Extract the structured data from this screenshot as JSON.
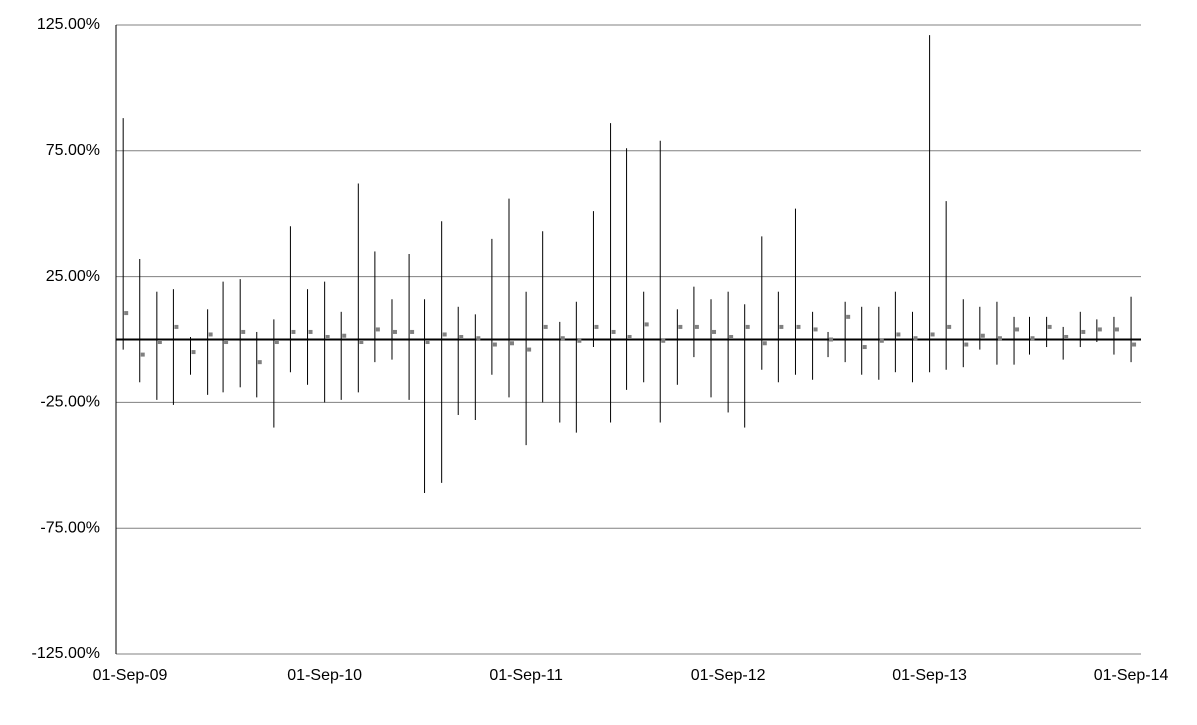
{
  "chart_data": {
    "type": "high-low",
    "x": [
      "2009-09-01",
      "2009-10-01",
      "2009-11-01",
      "2009-12-01",
      "2010-01-01",
      "2010-02-01",
      "2010-03-01",
      "2010-04-01",
      "2010-05-01",
      "2010-06-01",
      "2010-07-01",
      "2010-08-01",
      "2010-09-01",
      "2010-10-01",
      "2010-11-01",
      "2010-12-01",
      "2011-01-01",
      "2011-02-01",
      "2011-03-01",
      "2011-04-01",
      "2011-05-01",
      "2011-06-01",
      "2011-07-01",
      "2011-08-01",
      "2011-09-01",
      "2011-10-01",
      "2011-11-01",
      "2011-12-01",
      "2012-01-01",
      "2012-02-01",
      "2012-03-01",
      "2012-04-01",
      "2012-05-01",
      "2012-06-01",
      "2012-07-01",
      "2012-08-01",
      "2012-09-01",
      "2012-10-01",
      "2012-11-01",
      "2012-12-01",
      "2013-01-01",
      "2013-02-01",
      "2013-03-01",
      "2013-04-01",
      "2013-05-01",
      "2013-06-01",
      "2013-07-01",
      "2013-08-01",
      "2013-09-01",
      "2013-10-01",
      "2013-11-01",
      "2013-12-01",
      "2014-01-01",
      "2014-02-01",
      "2014-03-01",
      "2014-04-01",
      "2014-05-01",
      "2014-06-01",
      "2014-07-01",
      "2014-08-01",
      "2014-09-01"
    ],
    "high": [
      88,
      32,
      19,
      20,
      1,
      12,
      23,
      24,
      3,
      8,
      45,
      20,
      23,
      11,
      62,
      35,
      16,
      34,
      16,
      47,
      13,
      10,
      40,
      56,
      19,
      43,
      7,
      15,
      51,
      86,
      76,
      19,
      79,
      12,
      21,
      16,
      19,
      14,
      41,
      19,
      52,
      11,
      3,
      15,
      13,
      13,
      19,
      11,
      121,
      55,
      16,
      13,
      15,
      9,
      9,
      9,
      5,
      11,
      8,
      9,
      17
    ],
    "low": [
      -4,
      -17,
      -24,
      -26,
      -14,
      -22,
      -21,
      -19,
      -23,
      -35,
      -13,
      -18,
      -25,
      -24,
      -21,
      -9,
      -8,
      -24,
      -61,
      -57,
      -30,
      -32,
      -14,
      -23,
      -42,
      -25,
      -33,
      -37,
      -3,
      -33,
      -20,
      -17,
      -33,
      -18,
      -7,
      -23,
      -29,
      -35,
      -12,
      -17,
      -14,
      -16,
      -7,
      -9,
      -14,
      -16,
      -13,
      -17,
      -13,
      -12,
      -11,
      -4,
      -10,
      -10,
      -6,
      -3,
      -8,
      -3,
      -1,
      -6,
      -9
    ],
    "mean": [
      10.5,
      -6,
      -1,
      5,
      -5,
      2,
      -1,
      3,
      -9,
      -1,
      3,
      3,
      1,
      1.5,
      -1,
      4,
      3,
      3,
      -1,
      2,
      1,
      0.5,
      -2,
      -1.5,
      -4,
      5,
      0.5,
      -0.5,
      5,
      3,
      1,
      6,
      -0.5,
      5,
      5,
      3,
      1,
      5,
      -1.5,
      5,
      5,
      4,
      0,
      9,
      -3,
      -0.5,
      2,
      0.5,
      2,
      5,
      -2,
      1.5,
      0.5,
      4,
      0.5,
      5,
      1,
      3,
      4,
      4,
      -2
    ],
    "line_color": "#000000",
    "marker_color": "#808080",
    "xlim": [
      "2009-08-19",
      "2014-09-19"
    ],
    "xticks": [
      {
        "value": "2009-09-01",
        "label": "01-Sep-09"
      },
      {
        "value": "2010-09-01",
        "label": "01-Sep-10"
      },
      {
        "value": "2011-09-01",
        "label": "01-Sep-11"
      },
      {
        "value": "2012-09-01",
        "label": "01-Sep-12"
      },
      {
        "value": "2013-09-01",
        "label": "01-Sep-13"
      },
      {
        "value": "2014-09-01",
        "label": "01-Sep-14"
      }
    ],
    "ylim": [
      -125,
      125
    ],
    "yticks": [
      {
        "value": -125,
        "label": "-125.00%"
      },
      {
        "value": -75,
        "label": "-75.00%"
      },
      {
        "value": -25,
        "label": "-25.00%"
      },
      {
        "value": 25,
        "label": "25.00%"
      },
      {
        "value": 75,
        "label": "75.00%"
      },
      {
        "value": 125,
        "label": "125.00%"
      }
    ],
    "grid": true
  }
}
